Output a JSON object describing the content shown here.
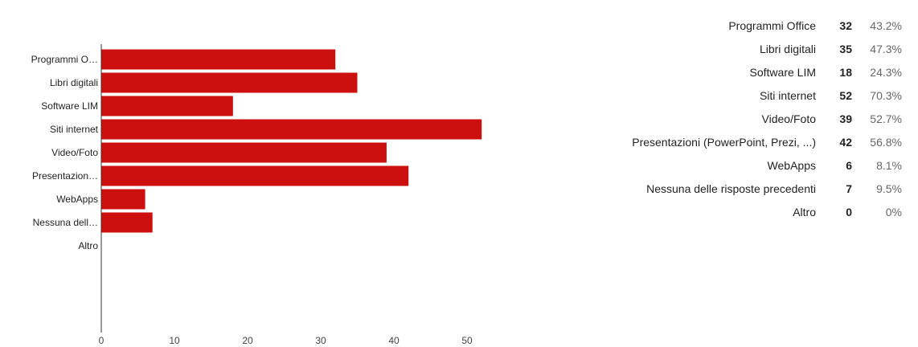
{
  "chart_data": {
    "type": "bar",
    "orientation": "horizontal",
    "categories": [
      "Programmi O…",
      "Libri digitali",
      "Software LIM",
      "Siti internet",
      "Video/Foto",
      "Presentazion…",
      "WebApps",
      "Nessuna dell…",
      "Altro"
    ],
    "values": [
      32,
      35,
      18,
      52,
      39,
      42,
      6,
      7,
      0
    ],
    "xticks": [
      "0",
      "10",
      "20",
      "30",
      "40",
      "50"
    ],
    "xlim": [
      0,
      55
    ],
    "grid": false,
    "legend": "none",
    "bar_color": "#cc0f0f"
  },
  "summary": {
    "rows": [
      {
        "label": "Programmi Office",
        "count": "32",
        "percent": "43.2%"
      },
      {
        "label": "Libri digitali",
        "count": "35",
        "percent": "47.3%"
      },
      {
        "label": "Software LIM",
        "count": "18",
        "percent": "24.3%"
      },
      {
        "label": "Siti internet",
        "count": "52",
        "percent": "70.3%"
      },
      {
        "label": "Video/Foto",
        "count": "39",
        "percent": "52.7%"
      },
      {
        "label": "Presentazioni (PowerPoint, Prezi, ...)",
        "count": "42",
        "percent": "56.8%"
      },
      {
        "label": "WebApps",
        "count": "6",
        "percent": "8.1%"
      },
      {
        "label": "Nessuna delle risposte precedenti",
        "count": "7",
        "percent": "9.5%"
      },
      {
        "label": "Altro",
        "count": "0",
        "percent": "0%"
      }
    ]
  }
}
